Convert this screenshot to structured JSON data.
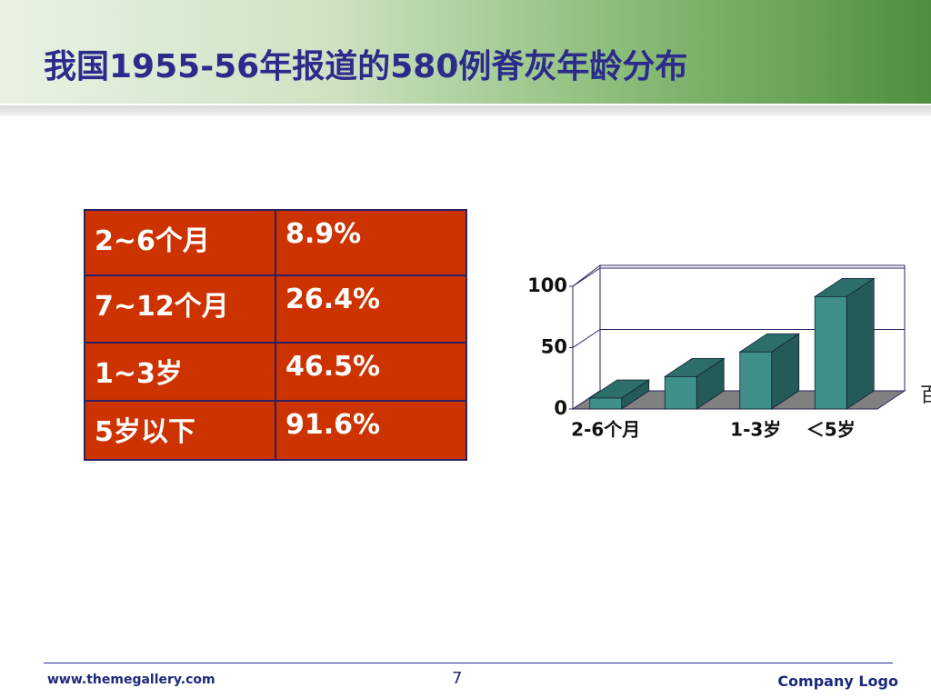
{
  "header": {
    "title": "我国1955-56年报道的580例脊灰年龄分布"
  },
  "table": {
    "rows": [
      [
        "2~6个月",
        "8.9%"
      ],
      [
        "7~12个月",
        "26.4%"
      ],
      [
        "1~3岁",
        "46.5%"
      ],
      [
        "5岁以下",
        "91.6%"
      ]
    ]
  },
  "chart_data": {
    "type": "bar",
    "y_label": "百",
    "categories": [
      "2-6个月",
      null,
      "1-3岁",
      "＜5岁"
    ],
    "values": [
      8.9,
      26.4,
      46.5,
      91.6
    ],
    "color": "#3f8f8a",
    "ylim": [
      0,
      100
    ],
    "yticks": [
      0,
      50,
      100
    ],
    "grid": true
  },
  "footer": {
    "url": "www.themegallery.com",
    "page": "7",
    "logo": "Company Logo"
  }
}
